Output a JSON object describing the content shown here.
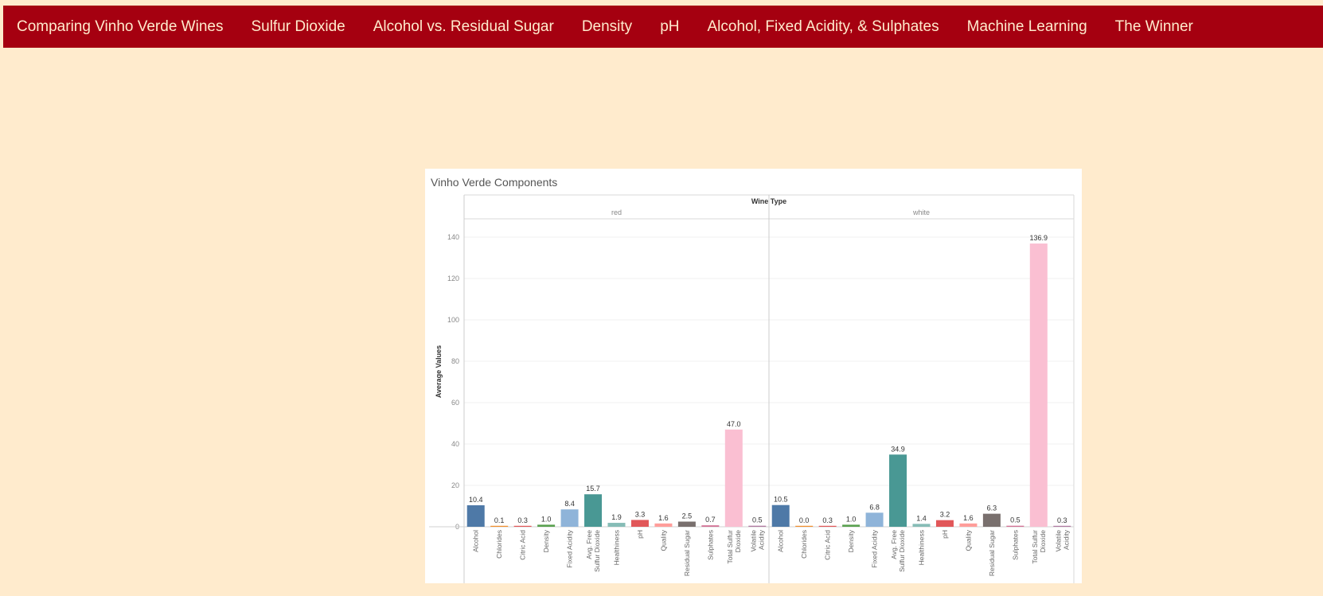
{
  "navbar": {
    "items": [
      {
        "label": "Comparing Vinho Verde Wines"
      },
      {
        "label": "Sulfur Dioxide"
      },
      {
        "label": "Alcohol vs. Residual Sugar"
      },
      {
        "label": "Density"
      },
      {
        "label": "pH"
      },
      {
        "label": "Alcohol, Fixed Acidity, & Sulphates"
      },
      {
        "label": "Machine Learning"
      },
      {
        "label": "The Winner"
      }
    ]
  },
  "colors": {
    "page_background": "#ffebcd",
    "navbar_background": "#a50010",
    "navbar_text": "#ffebcd"
  },
  "chart_data": {
    "type": "bar",
    "title": "Vinho Verde Components",
    "column_header": "Wine Type",
    "ylabel": "Average Values",
    "ylim": [
      0,
      150
    ],
    "yticks": [
      0,
      20,
      40,
      60,
      80,
      100,
      120,
      140
    ],
    "categories": [
      "Alcohol",
      "Chlorides",
      "Citric Acid",
      "Density",
      "Fixed Acidity",
      "Avg. Free Sulfur Dioxide",
      "Healthiness",
      "pH",
      "Quality",
      "Residual Sugar",
      "Sulphates",
      "Total Sulfur Dioxide",
      "Volatile Acidity"
    ],
    "category_colors": [
      "#4e79a7",
      "#f28e2b",
      "#e15759",
      "#59a14f",
      "#8fb4d9",
      "#499894",
      "#86bcb6",
      "#e15759",
      "#ff9d9a",
      "#79706e",
      "#d37295",
      "#fabfd2",
      "#b07aa1"
    ],
    "panels": [
      {
        "name": "red",
        "values": [
          10.4,
          0.1,
          0.3,
          1.0,
          8.4,
          15.7,
          1.9,
          3.3,
          1.6,
          2.5,
          0.7,
          47.0,
          0.5
        ],
        "labels": [
          "10.4",
          "0.1",
          "0.3",
          "1.0",
          "8.4",
          "15.7",
          "1.9",
          "3.3",
          "1.6",
          "2.5",
          "0.7",
          "47.0",
          "0.5"
        ]
      },
      {
        "name": "white",
        "values": [
          10.5,
          0.0,
          0.3,
          1.0,
          6.8,
          34.9,
          1.4,
          3.2,
          1.6,
          6.3,
          0.5,
          136.9,
          0.3
        ],
        "labels": [
          "10.5",
          "0.0",
          "0.3",
          "1.0",
          "6.8",
          "34.9",
          "1.4",
          "3.2",
          "1.6",
          "6.3",
          "0.5",
          "136.9",
          "0.3"
        ]
      }
    ]
  }
}
